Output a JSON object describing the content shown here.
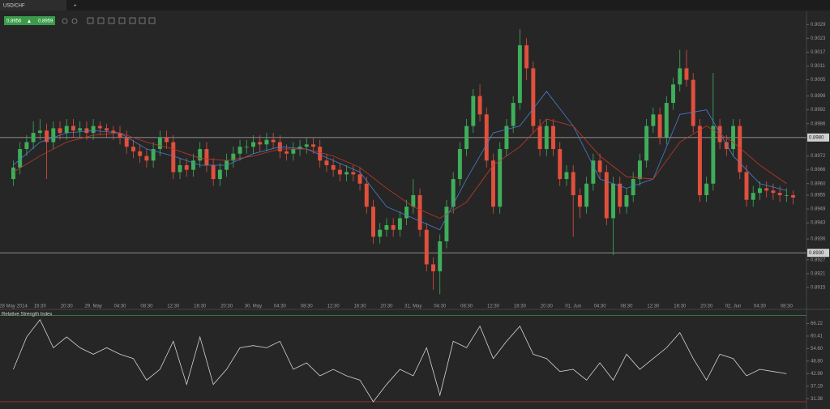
{
  "ui": {
    "tab": "USD/CHF",
    "new_tab": "+",
    "bid": "0.8956",
    "ask": "0.8959"
  },
  "chart_data": [
    {
      "type": "candlestick",
      "x": [
        0,
        1,
        2,
        3,
        4,
        5,
        6,
        7,
        8,
        9,
        10,
        11,
        12,
        13,
        14,
        15,
        16,
        17,
        18,
        19,
        20,
        21,
        22,
        23,
        24,
        25,
        26,
        27,
        28,
        29,
        30,
        31,
        32,
        33,
        34,
        35,
        36,
        37,
        38,
        39,
        40,
        41,
        42,
        43,
        44,
        45,
        46,
        47,
        48,
        49,
        50,
        51,
        52,
        53,
        54,
        55,
        56,
        57,
        58,
        59,
        60,
        61,
        62,
        63,
        64,
        65,
        66,
        67,
        68,
        69,
        70,
        71,
        72,
        73,
        74,
        75,
        76,
        77,
        78,
        79,
        80,
        81,
        82,
        83,
        84,
        85,
        86,
        87,
        88,
        89,
        90,
        91,
        92,
        93,
        94,
        95,
        96,
        97,
        98,
        99,
        100,
        101,
        102,
        103,
        104,
        105,
        106,
        107,
        108,
        109,
        110,
        111,
        112,
        113,
        114,
        115,
        116,
        117
      ],
      "open": [
        0.8962,
        0.8967,
        0.8975,
        0.8978,
        0.8982,
        0.8983,
        0.8978,
        0.8984,
        0.8982,
        0.8985,
        0.8983,
        0.8984,
        0.8982,
        0.8985,
        0.8984,
        0.8983,
        0.8982,
        0.898,
        0.8976,
        0.8974,
        0.8972,
        0.897,
        0.8975,
        0.898,
        0.8978,
        0.8965,
        0.8968,
        0.8966,
        0.897,
        0.8975,
        0.8968,
        0.8962,
        0.8966,
        0.897,
        0.8973,
        0.8976,
        0.8976,
        0.8978,
        0.8977,
        0.8979,
        0.8978,
        0.8974,
        0.8973,
        0.8975,
        0.8976,
        0.8977,
        0.8976,
        0.897,
        0.8968,
        0.8966,
        0.8964,
        0.8965,
        0.8964,
        0.896,
        0.895,
        0.8937,
        0.894,
        0.8942,
        0.894,
        0.8945,
        0.895,
        0.8955,
        0.894,
        0.8925,
        0.8922,
        0.8935,
        0.895,
        0.8962,
        0.8975,
        0.8985,
        0.8998,
        0.899,
        0.897,
        0.895,
        0.8975,
        0.8985,
        0.8995,
        0.902,
        0.901,
        0.8985,
        0.8975,
        0.8985,
        0.8975,
        0.8962,
        0.8965,
        0.8955,
        0.895,
        0.896,
        0.897,
        0.8965,
        0.8945,
        0.896,
        0.895,
        0.8955,
        0.8962,
        0.897,
        0.8985,
        0.899,
        0.898,
        0.8995,
        0.9003,
        0.901,
        0.9005,
        0.8985,
        0.8955,
        0.896,
        0.8985,
        0.8978,
        0.8975,
        0.8985,
        0.8965,
        0.8953,
        0.8956,
        0.8958,
        0.8957,
        0.8956,
        0.8955,
        0.8955
      ],
      "high": [
        0.897,
        0.8978,
        0.8981,
        0.8987,
        0.8988,
        0.8986,
        0.8987,
        0.8987,
        0.8988,
        0.8988,
        0.8987,
        0.8987,
        0.8988,
        0.8987,
        0.8986,
        0.8985,
        0.8985,
        0.8983,
        0.8979,
        0.8977,
        0.8975,
        0.8978,
        0.8983,
        0.8983,
        0.8981,
        0.8971,
        0.8971,
        0.8973,
        0.8978,
        0.8978,
        0.8971,
        0.8969,
        0.8973,
        0.8976,
        0.8979,
        0.8979,
        0.8981,
        0.8981,
        0.8982,
        0.8982,
        0.8981,
        0.8977,
        0.8978,
        0.8979,
        0.898,
        0.898,
        0.8979,
        0.8973,
        0.8971,
        0.8969,
        0.8968,
        0.8968,
        0.8967,
        0.8963,
        0.8953,
        0.8943,
        0.8945,
        0.8945,
        0.8948,
        0.8953,
        0.8962,
        0.8958,
        0.8943,
        0.8928,
        0.8938,
        0.8953,
        0.8965,
        0.8978,
        0.8988,
        0.9001,
        0.9003,
        0.8993,
        0.8973,
        0.8978,
        0.8988,
        0.8998,
        0.9027,
        0.9023,
        0.9013,
        0.8988,
        0.8988,
        0.8988,
        0.8978,
        0.8968,
        0.8968,
        0.8958,
        0.8963,
        0.8973,
        0.8973,
        0.8968,
        0.8963,
        0.8963,
        0.8958,
        0.8965,
        0.8973,
        0.8988,
        0.8993,
        0.8993,
        0.8998,
        0.9006,
        0.9018,
        0.9018,
        0.9008,
        0.8988,
        0.8963,
        0.9008,
        0.8988,
        0.8981,
        0.8988,
        0.8988,
        0.8968,
        0.8959,
        0.8961,
        0.8961,
        0.896,
        0.8959,
        0.8958,
        0.8957
      ],
      "low": [
        0.8959,
        0.8964,
        0.8972,
        0.8975,
        0.8979,
        0.8962,
        0.8975,
        0.8979,
        0.8979,
        0.898,
        0.898,
        0.8979,
        0.8979,
        0.8981,
        0.898,
        0.8979,
        0.8977,
        0.8973,
        0.8971,
        0.8969,
        0.8967,
        0.8967,
        0.8972,
        0.8975,
        0.8962,
        0.8962,
        0.8963,
        0.8963,
        0.8967,
        0.8965,
        0.8959,
        0.8959,
        0.8963,
        0.8967,
        0.897,
        0.8973,
        0.8973,
        0.8974,
        0.8974,
        0.8975,
        0.8971,
        0.897,
        0.897,
        0.8972,
        0.8973,
        0.8973,
        0.8967,
        0.8965,
        0.8963,
        0.8961,
        0.8961,
        0.8961,
        0.8957,
        0.8947,
        0.8934,
        0.8934,
        0.8937,
        0.8937,
        0.8937,
        0.8942,
        0.8947,
        0.8937,
        0.8922,
        0.8914,
        0.8912,
        0.8932,
        0.8947,
        0.8959,
        0.8972,
        0.8982,
        0.8987,
        0.8967,
        0.8947,
        0.8947,
        0.8972,
        0.8982,
        0.8992,
        0.9005,
        0.8982,
        0.8972,
        0.8972,
        0.8972,
        0.8959,
        0.8959,
        0.8937,
        0.8945,
        0.8947,
        0.8957,
        0.8962,
        0.8942,
        0.8929,
        0.8947,
        0.8947,
        0.8952,
        0.8959,
        0.8967,
        0.8982,
        0.8977,
        0.8977,
        0.8992,
        0.9,
        0.9002,
        0.8982,
        0.8952,
        0.8952,
        0.8957,
        0.8975,
        0.8972,
        0.8972,
        0.8962,
        0.895,
        0.895,
        0.8953,
        0.8954,
        0.8953,
        0.8952,
        0.8952,
        0.8951
      ],
      "close": [
        0.8967,
        0.8975,
        0.8978,
        0.8982,
        0.8983,
        0.8978,
        0.8984,
        0.8982,
        0.8985,
        0.8983,
        0.8984,
        0.8982,
        0.8985,
        0.8984,
        0.8983,
        0.8982,
        0.898,
        0.8976,
        0.8974,
        0.8972,
        0.897,
        0.8975,
        0.898,
        0.8978,
        0.8965,
        0.8968,
        0.8966,
        0.897,
        0.8975,
        0.8968,
        0.8962,
        0.8966,
        0.897,
        0.8973,
        0.8976,
        0.8976,
        0.8978,
        0.8977,
        0.8979,
        0.8978,
        0.8974,
        0.8973,
        0.8975,
        0.8976,
        0.8977,
        0.8976,
        0.897,
        0.8968,
        0.8966,
        0.8964,
        0.8965,
        0.8964,
        0.896,
        0.895,
        0.8937,
        0.894,
        0.8942,
        0.894,
        0.8945,
        0.895,
        0.8955,
        0.894,
        0.8925,
        0.8922,
        0.8935,
        0.895,
        0.8962,
        0.8975,
        0.8985,
        0.8998,
        0.899,
        0.897,
        0.895,
        0.8975,
        0.8985,
        0.8995,
        0.902,
        0.901,
        0.8985,
        0.8975,
        0.8985,
        0.8975,
        0.8962,
        0.8965,
        0.8955,
        0.895,
        0.896,
        0.897,
        0.8965,
        0.8945,
        0.896,
        0.895,
        0.8955,
        0.8962,
        0.897,
        0.8985,
        0.899,
        0.898,
        0.8995,
        0.9003,
        0.901,
        0.9005,
        0.8985,
        0.8955,
        0.896,
        0.8985,
        0.8978,
        0.8975,
        0.8985,
        0.8965,
        0.8953,
        0.8956,
        0.8958,
        0.8957,
        0.8956,
        0.8955,
        0.8955,
        0.8954
      ],
      "up_color": "#3fae5a",
      "down_color": "#e0503c",
      "overlays": [
        {
          "color": "#4a7fd0",
          "x": [
            0,
            4,
            8,
            12,
            16,
            20,
            24,
            28,
            32,
            36,
            40,
            44,
            48,
            52,
            56,
            60,
            64,
            68,
            72,
            76,
            80,
            84,
            88,
            92,
            96,
            100,
            104,
            108,
            112,
            116
          ],
          "values": [
            0.8968,
            0.8978,
            0.8982,
            0.8983,
            0.8982,
            0.8975,
            0.8972,
            0.8968,
            0.8968,
            0.8973,
            0.8976,
            0.8975,
            0.897,
            0.8965,
            0.895,
            0.8945,
            0.894,
            0.8962,
            0.8982,
            0.8985,
            0.9,
            0.8985,
            0.8962,
            0.8958,
            0.8962,
            0.899,
            0.8992,
            0.8972,
            0.896,
            0.8957
          ]
        },
        {
          "color": "#c0392b",
          "x": [
            0,
            4,
            8,
            12,
            16,
            20,
            24,
            28,
            32,
            36,
            40,
            44,
            48,
            52,
            56,
            60,
            64,
            68,
            72,
            76,
            80,
            84,
            88,
            92,
            96,
            100,
            104,
            108,
            112,
            116
          ],
          "values": [
            0.8965,
            0.8972,
            0.8978,
            0.8981,
            0.8982,
            0.8978,
            0.8975,
            0.8971,
            0.897,
            0.8972,
            0.8975,
            0.8975,
            0.8972,
            0.8967,
            0.8958,
            0.895,
            0.8945,
            0.8952,
            0.8968,
            0.8976,
            0.8988,
            0.8985,
            0.8972,
            0.8963,
            0.8962,
            0.8978,
            0.8985,
            0.8978,
            0.8968,
            0.896
          ]
        }
      ],
      "hlines": [
        {
          "value": 0.898,
          "label": "0.8980"
        },
        {
          "value": 0.893,
          "label": "0.8930"
        }
      ],
      "xlim": [
        -2,
        119
      ],
      "ylim": [
        0.8909,
        0.9034
      ],
      "yticks": [
        0.9029,
        0.9023,
        0.9017,
        0.9011,
        0.9005,
        0.8998,
        0.8992,
        0.8986,
        0.8972,
        0.8966,
        {
          "value": 0.896,
          "label": "0.8960"
        },
        0.8955,
        0.8949,
        0.8943,
        0.8936,
        0.8927,
        0.8921,
        0.8915
      ],
      "xticks": [
        {
          "value": 0,
          "label": "28 May 2014"
        },
        {
          "value": 4,
          "label": "16:30"
        },
        {
          "value": 8,
          "label": "20:30"
        },
        {
          "value": 12,
          "label": "29. May"
        },
        {
          "value": 16,
          "label": "04:30"
        },
        {
          "value": 20,
          "label": "08:30"
        },
        {
          "value": 24,
          "label": "12:30"
        },
        {
          "value": 28,
          "label": "16:30"
        },
        {
          "value": 32,
          "label": "20:30"
        },
        {
          "value": 36,
          "label": "30. May"
        },
        {
          "value": 40,
          "label": "04:30"
        },
        {
          "value": 44,
          "label": "08:30"
        },
        {
          "value": 48,
          "label": "12:30"
        },
        {
          "value": 52,
          "label": "16:30"
        },
        {
          "value": 56,
          "label": "20:30"
        },
        {
          "value": 60,
          "label": "31. May"
        },
        {
          "value": 64,
          "label": "04:30"
        },
        {
          "value": 68,
          "label": "08:30"
        },
        {
          "value": 72,
          "label": "12:30"
        },
        {
          "value": 76,
          "label": "16:30"
        },
        {
          "value": 80,
          "label": "20:30"
        },
        {
          "value": 84,
          "label": "01. Jun"
        },
        {
          "value": 88,
          "label": "04:30"
        },
        {
          "value": 92,
          "label": "08:30"
        },
        {
          "value": 96,
          "label": "12:30"
        },
        {
          "value": 100,
          "label": "16:30"
        },
        {
          "value": 104,
          "label": "20:30"
        },
        {
          "value": 108,
          "label": "02. Jun"
        },
        {
          "value": 112,
          "label": "04:30"
        },
        {
          "value": 116,
          "label": "08:30"
        }
      ]
    },
    {
      "type": "line",
      "title": "Relative Strength Index",
      "color": "#d4d4d4",
      "x": [
        0,
        2,
        4,
        6,
        8,
        10,
        12,
        14,
        16,
        18,
        20,
        22,
        24,
        26,
        28,
        30,
        32,
        34,
        36,
        38,
        40,
        42,
        44,
        46,
        48,
        50,
        52,
        54,
        56,
        58,
        60,
        62,
        64,
        66,
        68,
        70,
        72,
        74,
        76,
        78,
        80,
        82,
        84,
        86,
        88,
        90,
        92,
        94,
        96,
        98,
        100,
        102,
        104,
        106,
        108,
        110,
        112,
        114,
        116
      ],
      "values": [
        45,
        60,
        68,
        55,
        60,
        55,
        52,
        55,
        52,
        50,
        40,
        45,
        58,
        38,
        60,
        38,
        45,
        55,
        56,
        55,
        58,
        45,
        48,
        42,
        45,
        42,
        40,
        30,
        38,
        45,
        42,
        55,
        33,
        58,
        55,
        65,
        50,
        58,
        65,
        52,
        50,
        44,
        45,
        40,
        48,
        40,
        52,
        45,
        50,
        55,
        62,
        50,
        40,
        52,
        50,
        42,
        45,
        44,
        43
      ],
      "levels": [
        {
          "value": 70,
          "color": "#3c8c46"
        },
        {
          "value": 30,
          "color": "#b03a2e"
        }
      ],
      "xlim": [
        -2,
        119
      ],
      "ylim": [
        28.5,
        72.4
      ],
      "yticks": [
        66.22,
        60.41,
        {
          "value": 54.6,
          "label": "54.60"
        },
        {
          "value": 48.8,
          "label": "48.80"
        },
        42.99,
        37.19,
        31.38
      ]
    }
  ]
}
